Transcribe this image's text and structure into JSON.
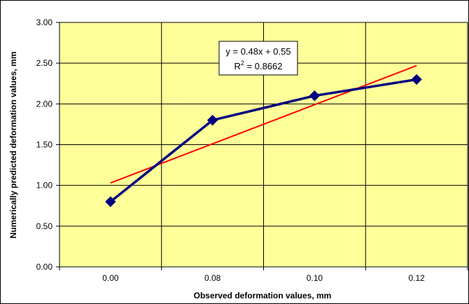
{
  "chart_data": {
    "type": "line",
    "xlabel": "Observed deformation values, mm",
    "ylabel": "Numerically predicted deformation values, mm",
    "categories": [
      "0.00",
      "0.08",
      "0.10",
      "0.12"
    ],
    "ylim": [
      0,
      3
    ],
    "y_ticks": [
      "0.00",
      "0.50",
      "1.00",
      "1.50",
      "2.00",
      "2.50",
      "3.00"
    ],
    "grid": true,
    "series": [
      {
        "values": [
          0.8,
          1.8,
          2.1,
          2.3
        ],
        "color": "#000080",
        "marker": "diamond"
      }
    ],
    "trendline": {
      "type": "linear",
      "color": "#ff0000",
      "start": 1.03,
      "end": 2.47,
      "equation": "y = 0.48x + 0.55",
      "r_squared_label": "R",
      "r_squared_sup": "2",
      "r_squared_value": " = 0.8662"
    },
    "plot_background": "#ffff99"
  }
}
